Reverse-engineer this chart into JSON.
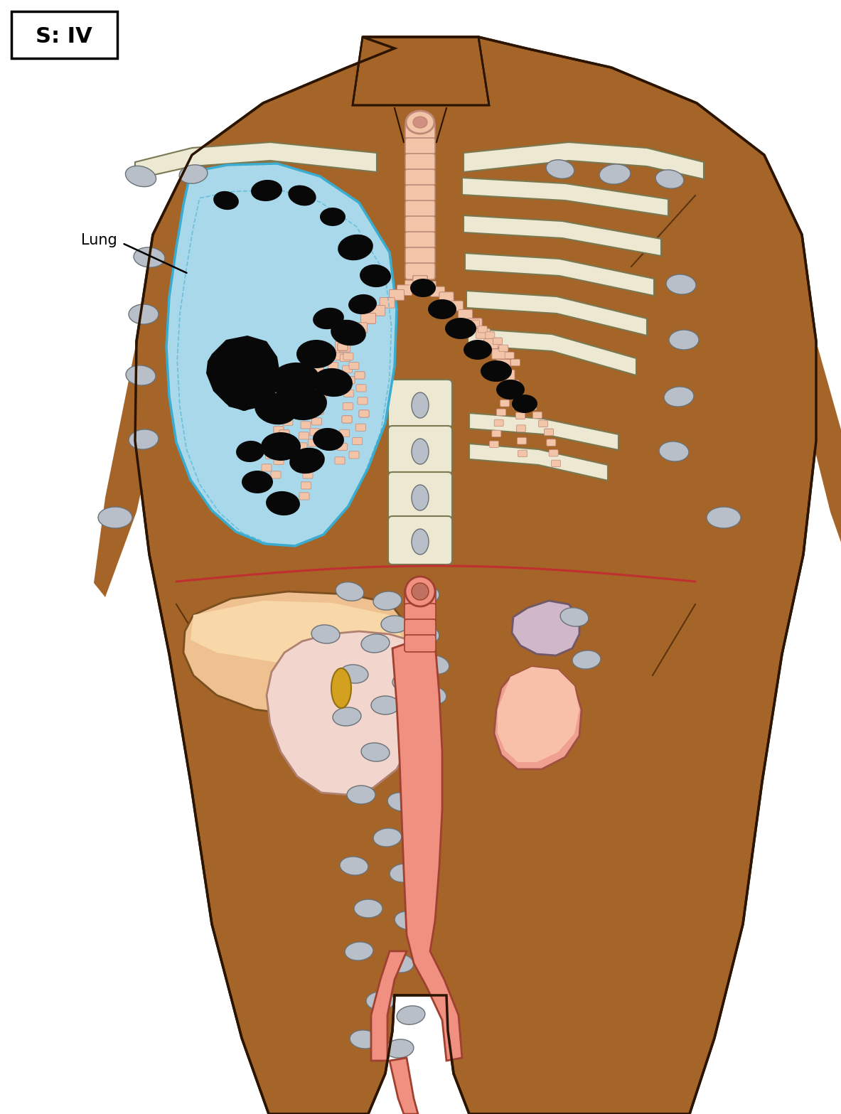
{
  "body_color": "#A56428",
  "body_outline": "#2C1500",
  "lung_color": "#A8D8EA",
  "lung_outline": "#3AACCF",
  "bone_color": "#EDE8D2",
  "bone_outline": "#7A7850",
  "trachea_fill": "#F2C4A8",
  "trachea_outline": "#C08878",
  "liver_color": "#EFC090",
  "liver_outline": "#7A5020",
  "stomach_color": "#F2D5CC",
  "stomach_outline": "#B08070",
  "spleen_color": "#D0B8C8",
  "spleen_outline": "#705868",
  "kidney_color": "#F0A090",
  "kidney_outline": "#A05040",
  "aorta_color": "#F09080",
  "aorta_outline": "#A04030",
  "lymph_color": "#B8BFC8",
  "lymph_outline": "#6A7278",
  "tumor_color": "#080808",
  "diaphragm_color": "#C03030",
  "gallbladder_color": "#D4A020",
  "gallbladder_outline": "#907010",
  "label_text": "S: IV",
  "lung_label": "Lung",
  "bg": "#FFFFFF"
}
